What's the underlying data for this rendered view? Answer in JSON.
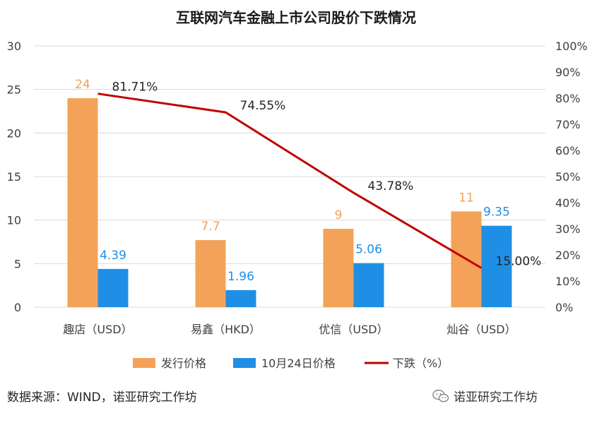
{
  "chart_data": {
    "type": "bar",
    "title": "互联网汽车金融上市公司股价下跌情况",
    "categories": [
      "趣店（USD）",
      "易鑫（HKD）",
      "优信（USD）",
      "灿谷（USD）"
    ],
    "series": [
      {
        "name": "发行价格",
        "type": "bar",
        "axis": "left",
        "color": "#F4A259",
        "values": [
          24,
          7.7,
          9,
          11
        ],
        "labels": [
          "24",
          "7.7",
          "9",
          "11"
        ]
      },
      {
        "name": "10月24日价格",
        "type": "bar",
        "axis": "left",
        "color": "#1F8FE5",
        "values": [
          4.39,
          1.96,
          5.06,
          9.35
        ],
        "labels": [
          "4.39",
          "1.96",
          "5.06",
          "9.35"
        ]
      },
      {
        "name": "下跌（%）",
        "type": "line",
        "axis": "right",
        "color": "#C00000",
        "values": [
          81.71,
          74.55,
          43.78,
          15.0
        ],
        "labels": [
          "81.71%",
          "74.55%",
          "43.78%",
          "15.00%"
        ]
      }
    ],
    "y_left": {
      "min": 0,
      "max": 30,
      "ticks": [
        "0",
        "5",
        "10",
        "15",
        "20",
        "25",
        "30"
      ]
    },
    "y_right": {
      "min": 0,
      "max": 100,
      "ticks": [
        "0%",
        "10%",
        "20%",
        "30%",
        "40%",
        "50%",
        "60%",
        "70%",
        "80%",
        "90%",
        "100%"
      ]
    },
    "grid": true,
    "legend_position": "bottom"
  },
  "source": "数据来源：WIND，诺亚研究工作坊",
  "brand": {
    "name": "诺亚研究工作坊",
    "icon": "wechat-icon"
  }
}
